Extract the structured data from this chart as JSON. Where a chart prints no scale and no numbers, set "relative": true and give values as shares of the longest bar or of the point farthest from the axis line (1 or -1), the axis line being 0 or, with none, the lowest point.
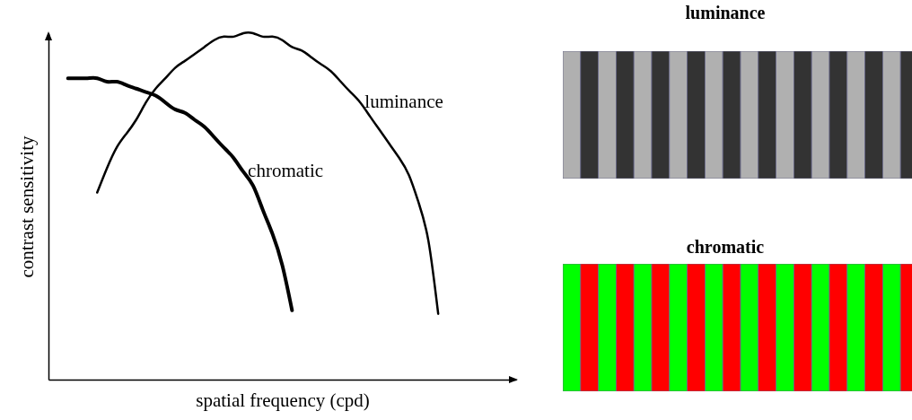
{
  "chart_data": {
    "type": "line",
    "relative": true,
    "xlabel": "spatial frequency (cpd)",
    "ylabel": "contrast sensitivity",
    "categories": [
      null,
      null,
      null,
      null,
      null,
      null,
      null,
      null,
      null,
      null,
      null,
      null,
      null,
      null,
      null,
      null,
      null,
      null,
      null,
      null,
      null,
      null,
      null,
      null,
      null,
      null,
      null,
      null,
      null,
      null,
      null,
      null,
      null,
      null,
      null,
      null,
      null,
      null,
      null,
      null,
      null,
      null,
      null,
      null,
      null,
      null,
      null,
      null,
      null
    ],
    "series": [
      {
        "name": "chromatic",
        "color": "#000000",
        "values": [
          null,
          null,
          0.87,
          0.87,
          0.87,
          0.87,
          0.86,
          0.86,
          0.85,
          0.84,
          0.83,
          0.82,
          0.8,
          0.78,
          0.77,
          0.75,
          0.73,
          0.7,
          0.67,
          0.64,
          0.6,
          0.56,
          0.49,
          0.42,
          0.33,
          0.2,
          null,
          null,
          null,
          null,
          null,
          null,
          null,
          null,
          null,
          null,
          null,
          null,
          null,
          null,
          null,
          null,
          null,
          null,
          null,
          null,
          null,
          null,
          null
        ]
      },
      {
        "name": "luminance",
        "color": "#000000",
        "values": [
          null,
          null,
          null,
          null,
          null,
          0.54,
          0.61,
          0.67,
          0.71,
          0.75,
          0.8,
          0.84,
          0.87,
          0.9,
          0.92,
          0.94,
          0.96,
          0.98,
          0.99,
          0.99,
          1,
          1,
          0.99,
          0.99,
          0.98,
          0.96,
          0.95,
          0.93,
          0.91,
          0.89,
          0.86,
          0.83,
          0.8,
          0.76,
          0.72,
          0.68,
          0.64,
          0.59,
          0.51,
          0.4,
          0.19,
          null,
          null,
          null,
          null,
          null,
          null,
          null,
          null
        ]
      }
    ],
    "annotations": [
      "luminance",
      "chromatic"
    ],
    "grid": false,
    "marker": "none",
    "line_style": "solid"
  }
}
